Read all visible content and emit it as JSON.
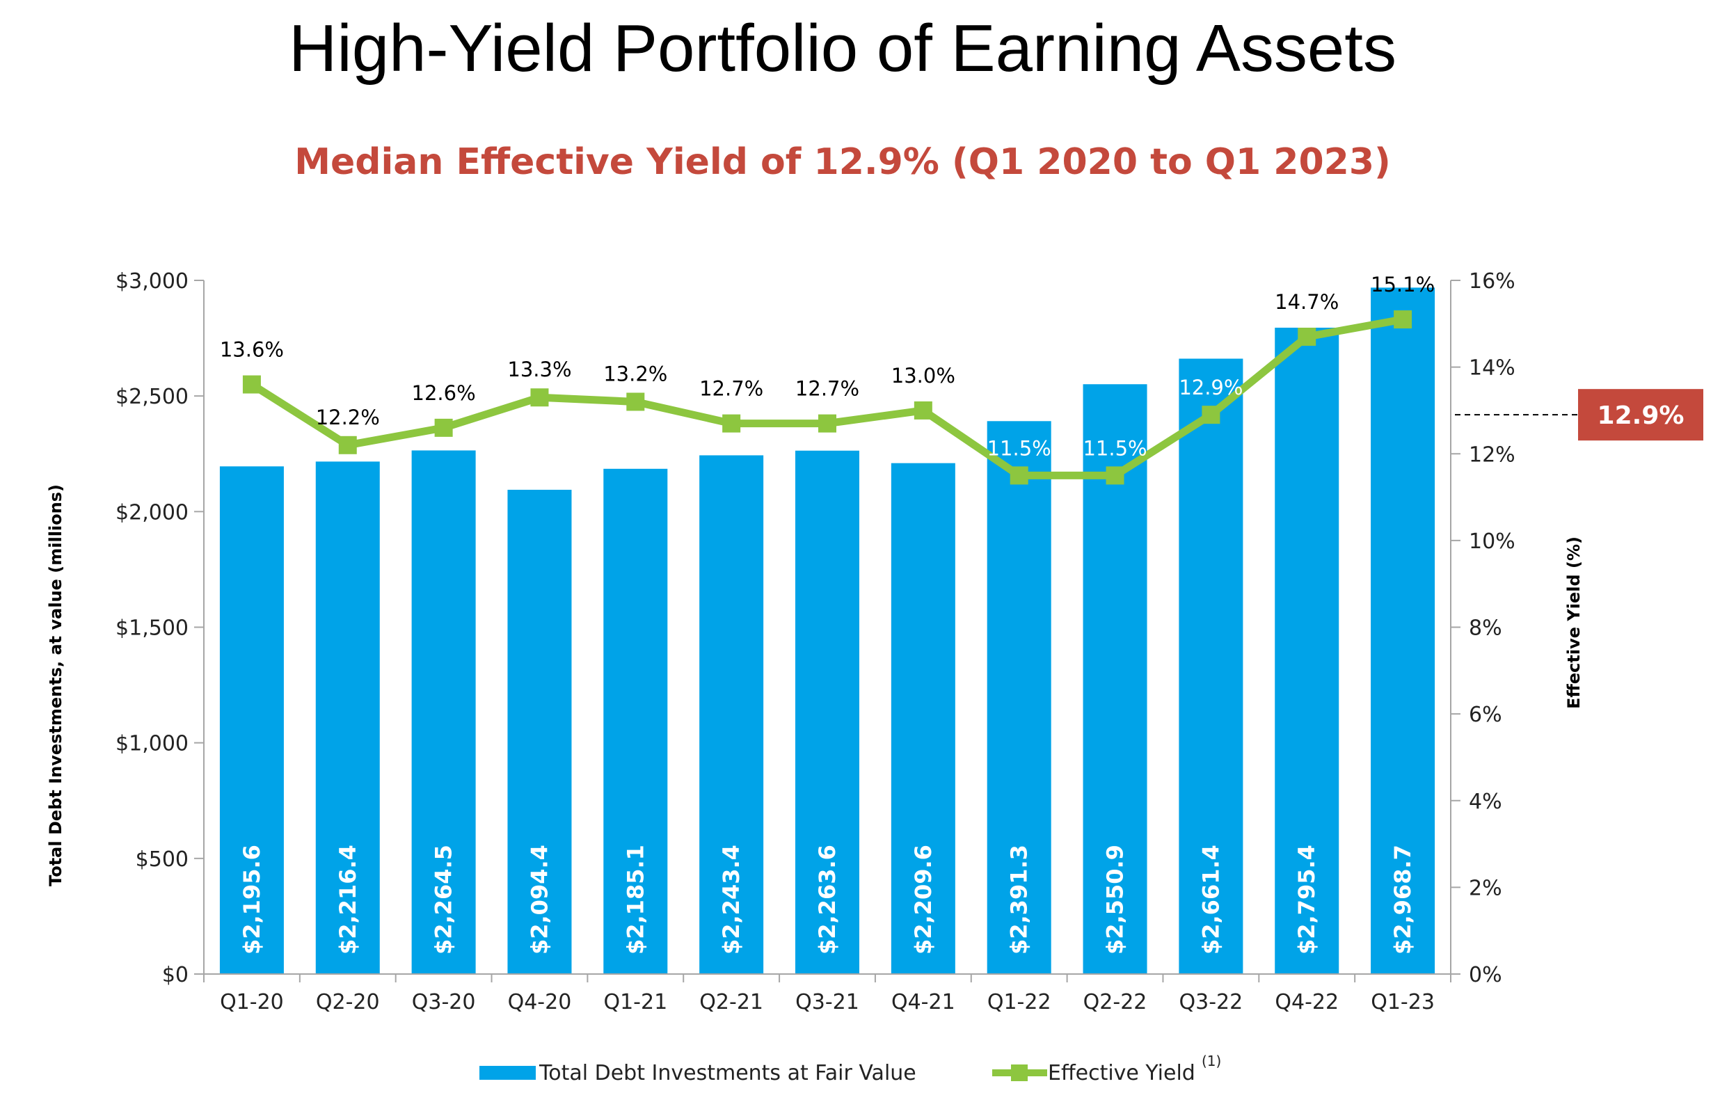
{
  "colors": {
    "bar": "#00a3e8",
    "line": "#8dc63f",
    "accent": "#c4493c",
    "axis": "#a6a6a6"
  },
  "chart_data": {
    "type": "bar",
    "title": "High-Yield Portfolio of Earning Assets",
    "subtitle": "Median Effective Yield of 12.9% (Q1 2020 to Q1 2023)",
    "categories": [
      "Q1-20",
      "Q2-20",
      "Q3-20",
      "Q4-20",
      "Q1-21",
      "Q2-21",
      "Q3-21",
      "Q4-21",
      "Q1-22",
      "Q2-22",
      "Q3-22",
      "Q4-22",
      "Q1-23"
    ],
    "ylabel": "Total Debt Investments, at value  (millions)",
    "y2label": "Effective Yield (%)",
    "ylim": [
      0,
      3000
    ],
    "y2lim": [
      0,
      16
    ],
    "yticks": [
      "$0",
      "$500",
      "$1,000",
      "$1,500",
      "$2,000",
      "$2,500",
      "$3,000"
    ],
    "y2ticks": [
      "0%",
      "2%",
      "4%",
      "6%",
      "8%",
      "10%",
      "12%",
      "14%",
      "16%"
    ],
    "series": [
      {
        "name": "Total Debt Investments at Fair Value",
        "type": "bar",
        "values": [
          2195.6,
          2216.4,
          2264.5,
          2094.4,
          2185.1,
          2243.4,
          2263.6,
          2209.6,
          2391.3,
          2550.9,
          2661.4,
          2795.4,
          2968.7
        ],
        "labels": [
          "$2,195.6",
          "$2,216.4",
          "$2,264.5",
          "$2,094.4",
          "$2,185.1",
          "$2,243.4",
          "$2,263.6",
          "$2,209.6",
          "$2,391.3",
          "$2,550.9",
          "$2,661.4",
          "$2,795.4",
          "$2,968.7"
        ]
      },
      {
        "name": "Effective Yield",
        "name_superscript": "(1)",
        "type": "line",
        "axis": "right",
        "values": [
          13.6,
          12.2,
          12.6,
          13.3,
          13.2,
          12.7,
          12.7,
          13.0,
          11.5,
          11.5,
          12.9,
          14.7,
          15.1
        ],
        "labels": [
          "13.6%",
          "12.2%",
          "12.6%",
          "13.3%",
          "13.2%",
          "12.7%",
          "12.7%",
          "13.0%",
          "11.5%",
          "11.5%",
          "12.9%",
          "14.7%",
          "15.1%"
        ]
      }
    ],
    "median_line": {
      "value": 12.9,
      "label": "12.9%"
    },
    "legend": "bottom",
    "grid": false
  }
}
